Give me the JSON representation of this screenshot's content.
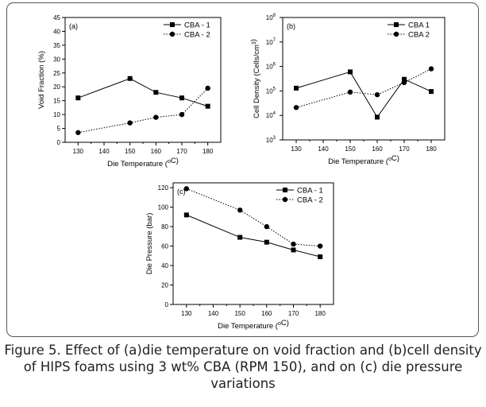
{
  "caption": "Figure 5. Effect of (a)die temperature on void fraction and (b)cell density of HIPS foams using 3 wt% CBA (RPM 150), and on (c) die pressure variations",
  "chart_data": [
    {
      "type": "line",
      "panel_label": "(a)",
      "xlabel": "Die Temperature (°C)",
      "ylabel": "Void Fraction (%)",
      "x": [
        130,
        150,
        160,
        170,
        180
      ],
      "xticks": [
        130,
        140,
        150,
        160,
        170,
        180
      ],
      "xlim": [
        125,
        185
      ],
      "ylim": [
        0,
        45
      ],
      "yticks": [
        0,
        5,
        10,
        15,
        20,
        25,
        30,
        35,
        40,
        45
      ],
      "grid": false,
      "legend": "top-right",
      "series": [
        {
          "name": "CBA - 1",
          "values": [
            16,
            23,
            18,
            16,
            13
          ],
          "marker": "square",
          "line": "solid"
        },
        {
          "name": "CBA - 2",
          "values": [
            3.5,
            7,
            9,
            10,
            19.5
          ],
          "marker": "circle",
          "line": "dotted"
        }
      ]
    },
    {
      "type": "line",
      "panel_label": "(b)",
      "xlabel": "Die Temperature (°C)",
      "ylabel": "Cell Density (Cells/cm³)",
      "y_scale": "log",
      "x": [
        130,
        150,
        160,
        170,
        180
      ],
      "xticks": [
        130,
        140,
        150,
        160,
        170,
        180
      ],
      "xlim": [
        125,
        185
      ],
      "ylim": [
        1000,
        100000000
      ],
      "yticks": [
        {
          "base": "10",
          "exp": "3",
          "value": 1000
        },
        {
          "base": "10",
          "exp": "4",
          "value": 10000
        },
        {
          "base": "10",
          "exp": "5",
          "value": 100000
        },
        {
          "base": "10",
          "exp": "6",
          "value": 1000000
        },
        {
          "base": "10",
          "exp": "7",
          "value": 10000000
        },
        {
          "base": "10",
          "exp": "8",
          "value": 100000000
        }
      ],
      "grid": false,
      "legend": "top-right",
      "series": [
        {
          "name": "CBA 1",
          "values": [
            130000,
            600000,
            8500,
            300000,
            95000
          ],
          "marker": "square",
          "line": "solid"
        },
        {
          "name": "CBA 2",
          "values": [
            21000,
            90000,
            70000,
            220000,
            800000
          ],
          "marker": "circle",
          "line": "dotted"
        }
      ]
    },
    {
      "type": "line",
      "panel_label": "(c)",
      "xlabel": "Die Temperature (°C)",
      "ylabel": "Die Pressure (bar)",
      "x": [
        130,
        150,
        160,
        170,
        180
      ],
      "xticks": [
        130,
        140,
        150,
        160,
        170,
        180
      ],
      "xlim": [
        125,
        185
      ],
      "ylim": [
        0,
        125
      ],
      "yticks": [
        0,
        20,
        40,
        60,
        80,
        100,
        120
      ],
      "grid": false,
      "legend": "top-right",
      "series": [
        {
          "name": "CBA - 1",
          "values": [
            92,
            69,
            64,
            56,
            49
          ],
          "marker": "square",
          "line": "solid"
        },
        {
          "name": "CBA - 2",
          "values": [
            119,
            97,
            80,
            62,
            60
          ],
          "marker": "circle",
          "line": "dotted"
        }
      ]
    }
  ]
}
